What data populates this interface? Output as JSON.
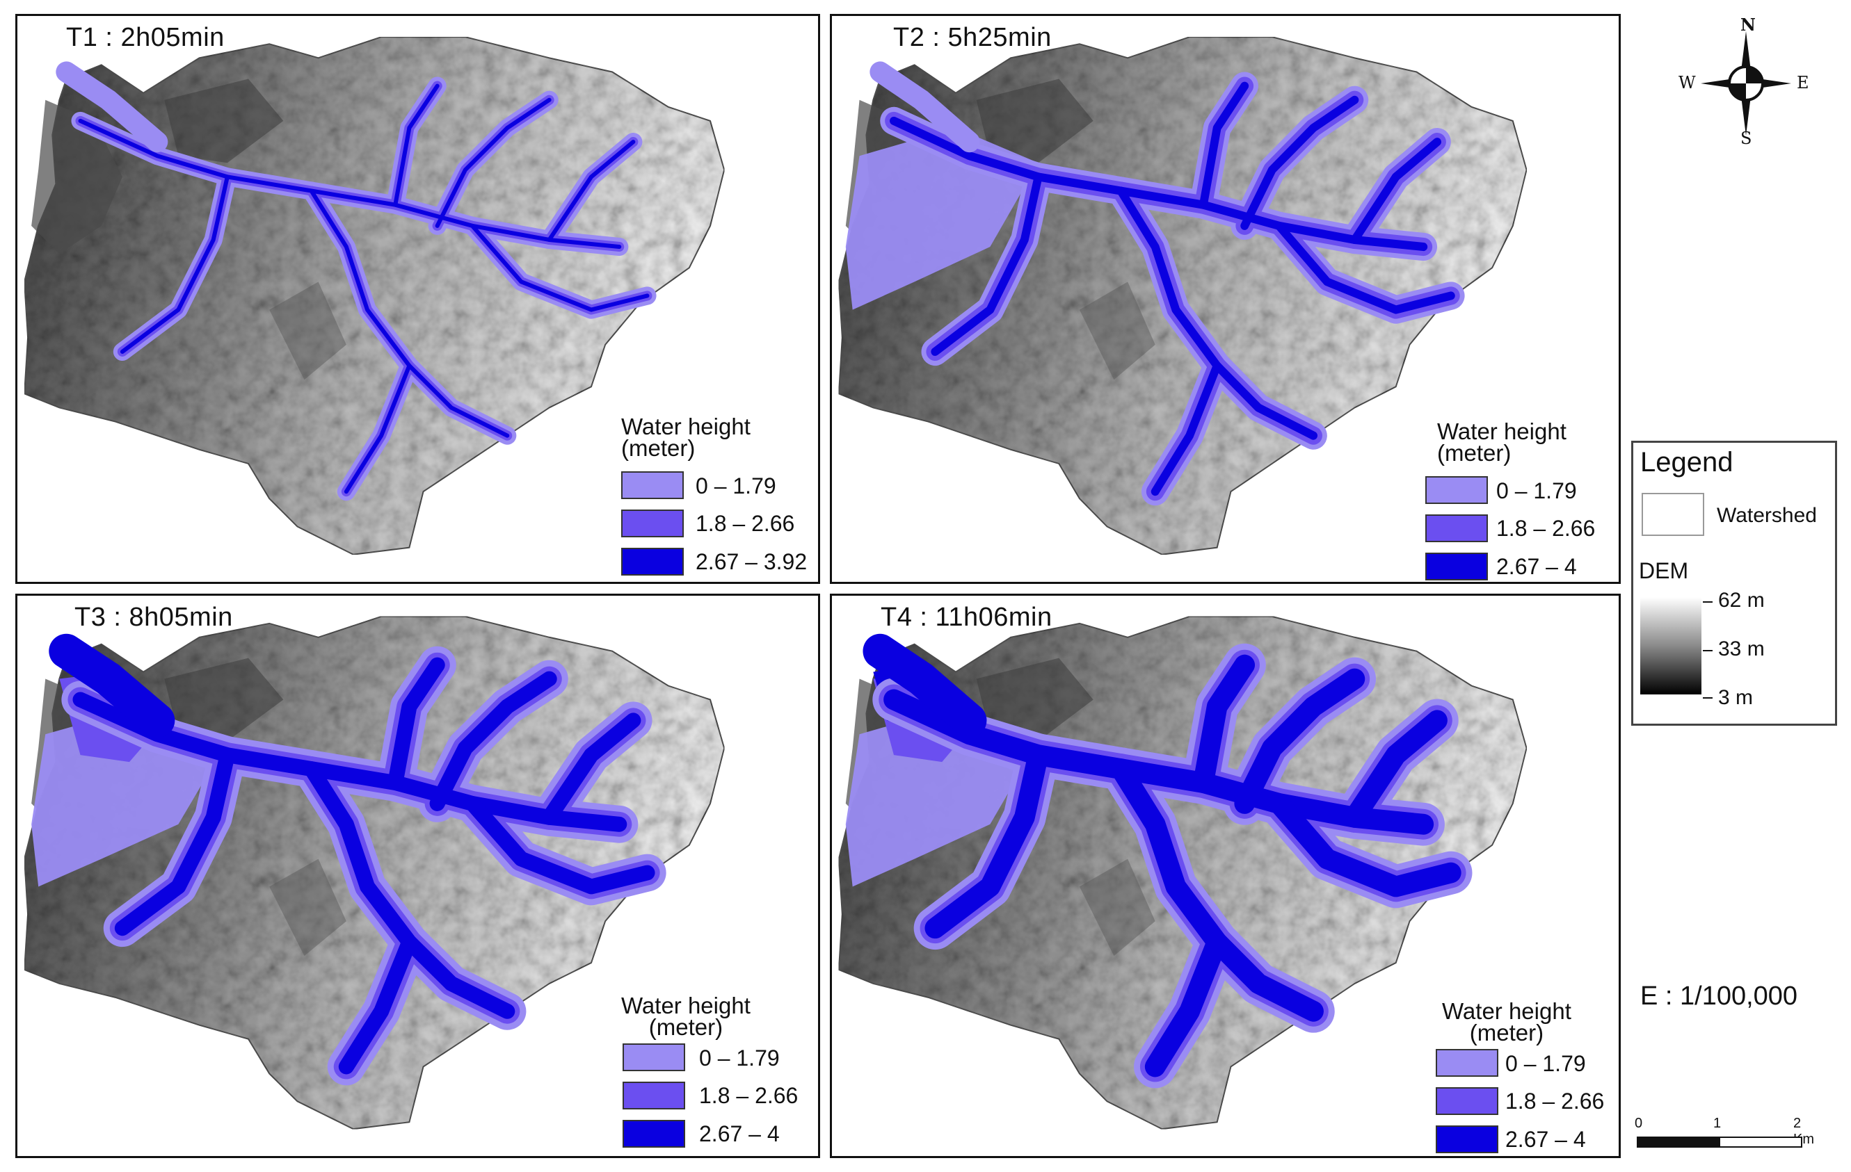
{
  "panels": [
    {
      "title": "T1 : 2h05min",
      "legend_title_line1": "Water height",
      "legend_title_line2": "(meter)",
      "classes": [
        "0 – 1.79",
        "1.8 – 2.66",
        "2.67 – 3.92"
      ],
      "flood_level": 1
    },
    {
      "title": "T2 : 5h25min",
      "legend_title_line1": "Water height",
      "legend_title_line2": "(meter)",
      "classes": [
        "0 – 1.79",
        "1.8 – 2.66",
        "2.67 – 4"
      ],
      "flood_level": 2
    },
    {
      "title": "T3 : 8h05min",
      "legend_title_line1": "Water height",
      "legend_title_line2": "(meter)",
      "classes": [
        "0 – 1.79",
        "1.8 – 2.66",
        "2.67 – 4"
      ],
      "flood_level": 3
    },
    {
      "title": "T4 : 11h06min",
      "legend_title_line1": "Water height",
      "legend_title_line2": "(meter)",
      "classes": [
        "0 – 1.79",
        "1.8 – 2.66",
        "2.67 – 4"
      ],
      "flood_level": 4
    }
  ],
  "class_colors": [
    "#9a8cf3",
    "#6b4ff0",
    "#0a00e0"
  ],
  "legend": {
    "title": "Legend",
    "watershed_label": "Watershed",
    "dem_label": "DEM",
    "dem_high": "62 m",
    "dem_mid": "33 m",
    "dem_low": "3 m"
  },
  "compass": {
    "n": "N",
    "s": "S",
    "e": "E",
    "w": "W"
  },
  "scale_ratio": "E : 1/100,000",
  "scalebar": {
    "start": "0",
    "mid": "1",
    "end": "2 Km"
  }
}
